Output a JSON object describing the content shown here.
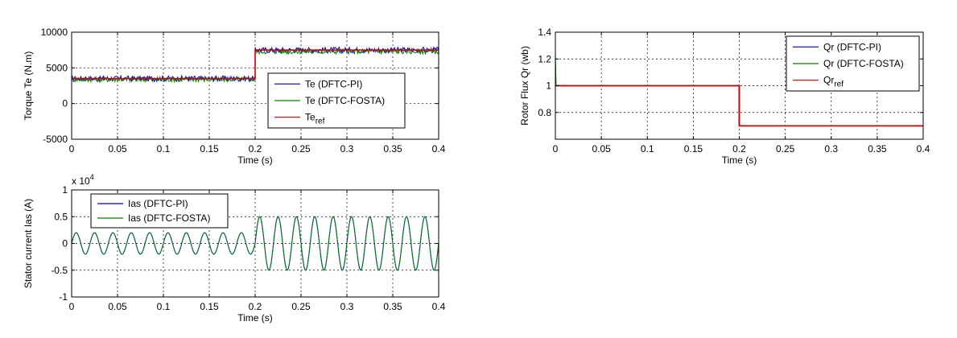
{
  "chart_data": [
    {
      "type": "line",
      "id": "torque",
      "xlabel": "Time (s)",
      "ylabel": "Torque Te (N.m)",
      "xlim": [
        0,
        0.4
      ],
      "ylim": [
        -5000,
        10000
      ],
      "xticks": [
        0,
        0.05,
        0.1,
        0.15,
        0.2,
        0.25,
        0.3,
        0.35,
        0.4
      ],
      "xtick_labels": [
        "0",
        "0.05",
        "0.1",
        "0.15",
        "0.2",
        "0.25",
        "0.3",
        "0.35",
        "0.4"
      ],
      "yticks": [
        -5000,
        0,
        5000,
        10000
      ],
      "ytick_labels": [
        "-5000",
        "0",
        "5000",
        "10000"
      ],
      "grid": true,
      "legend_position": "right",
      "series": [
        {
          "name": "Te (DFTC-PI)",
          "color": "#0000cc",
          "x": [
            0,
            0.2,
            0.2,
            0.4
          ],
          "y": [
            3500,
            3500,
            7500,
            7500
          ],
          "ripple": 500
        },
        {
          "name": "Te (DFTC-FOSTA)",
          "color": "#008000",
          "x": [
            0,
            0.2,
            0.2,
            0.4
          ],
          "y": [
            3400,
            3400,
            7300,
            7300
          ],
          "ripple": 450
        },
        {
          "name": "Te",
          "name_sub": "ref",
          "color": "#cc0000",
          "x": [
            0,
            0.2,
            0.2,
            0.4
          ],
          "y": [
            3500,
            3500,
            7500,
            7500
          ],
          "ripple": 0
        }
      ]
    },
    {
      "type": "line",
      "id": "flux",
      "xlabel": "Time (s)",
      "ylabel": "Rotor Flux Qr (wb)",
      "xlim": [
        0,
        0.4
      ],
      "ylim": [
        0.6,
        1.4
      ],
      "xticks": [
        0,
        0.05,
        0.1,
        0.15,
        0.2,
        0.25,
        0.3,
        0.35,
        0.4
      ],
      "xtick_labels": [
        "0",
        "0.05",
        "0.1",
        "0.15",
        "0.2",
        "0.25",
        "0.3",
        "0.35",
        "0.4"
      ],
      "yticks": [
        0.8,
        1.0,
        1.2,
        1.4
      ],
      "ytick_labels": [
        "0.8",
        "1",
        "1.2",
        "1.4"
      ],
      "grid": true,
      "legend_position": "top-right",
      "series": [
        {
          "name": "Qr (DFTC-PI)",
          "color": "#0000cc",
          "x": [
            0,
            0.2,
            0.2,
            0.4
          ],
          "y": [
            1.0,
            1.0,
            0.7,
            0.7
          ]
        },
        {
          "name": "Qr (DFTC-FOSTA)",
          "color": "#008000",
          "x": [
            0,
            0.2,
            0.2,
            0.4
          ],
          "y": [
            1.0,
            1.0,
            0.7,
            0.7
          ]
        },
        {
          "name": "Qr",
          "name_sub": "ref",
          "color": "#cc0000",
          "x": [
            0,
            0.2,
            0.2,
            0.4
          ],
          "y": [
            1.0,
            1.0,
            0.7,
            0.7
          ]
        }
      ]
    },
    {
      "type": "line",
      "id": "current",
      "xlabel": "Time (s)",
      "ylabel": "Stator current Ias (A)",
      "scale_label": "x 10",
      "scale_exponent": "4",
      "xlim": [
        0,
        0.4
      ],
      "ylim": [
        -1,
        1
      ],
      "xticks": [
        0,
        0.05,
        0.1,
        0.15,
        0.2,
        0.25,
        0.3,
        0.35,
        0.4
      ],
      "xtick_labels": [
        "0",
        "0.05",
        "0.1",
        "0.15",
        "0.2",
        "0.25",
        "0.3",
        "0.35",
        "0.4"
      ],
      "yticks": [
        -1,
        -0.5,
        0,
        0.5,
        1
      ],
      "ytick_labels": [
        "-1",
        "-0.5",
        "0",
        "0.5",
        "1"
      ],
      "grid": true,
      "legend_position": "top-left",
      "frequency_hz": 50,
      "amplitude_before": 0.2,
      "amplitude_after": 0.5,
      "step_time": 0.2,
      "series": [
        {
          "name": "Ias (DFTC-PI)",
          "color": "#0000cc"
        },
        {
          "name": "Ias (DFTC-FOSTA)",
          "color": "#008000"
        }
      ]
    }
  ]
}
